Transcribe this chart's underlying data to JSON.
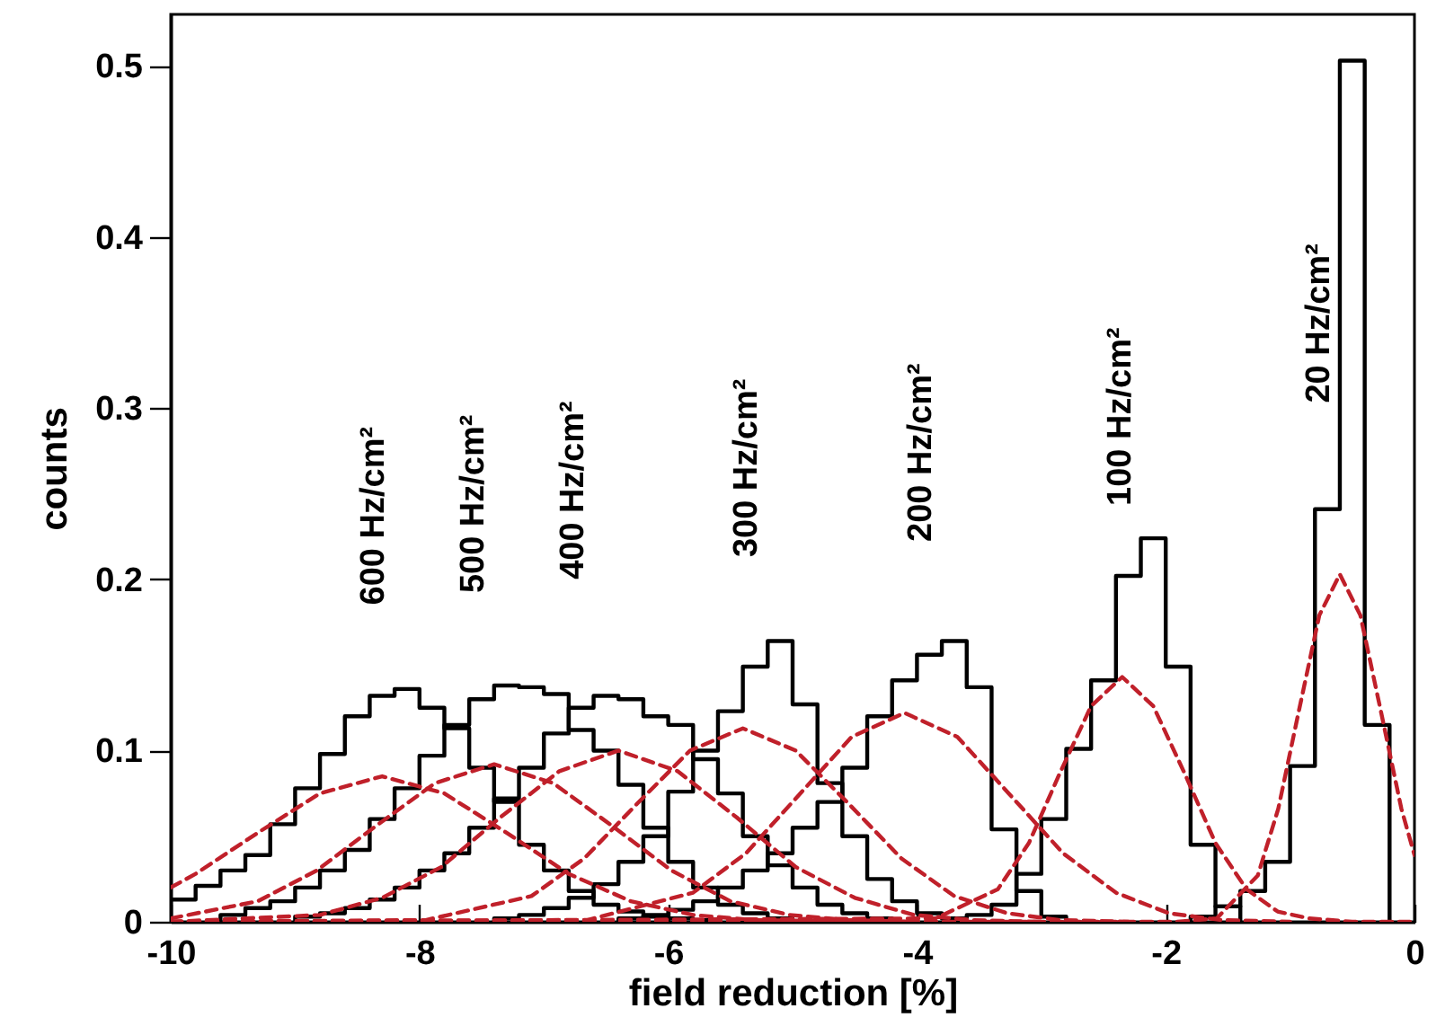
{
  "chart_data": {
    "type": "histogram",
    "xlabel": "field  reduction  [%]",
    "ylabel": "counts",
    "xlim": [
      -10,
      0
    ],
    "xticks": [
      -10,
      -8,
      -6,
      -4,
      -2,
      0
    ],
    "ylim": [
      0,
      0.53
    ],
    "yticks": [
      0,
      0.1,
      0.2,
      0.3,
      0.4,
      0.5
    ],
    "series": [
      {
        "color": "#000000",
        "bins": [
          -10,
          -9.8,
          -9.6,
          -9.4,
          -9.2,
          -9,
          -8.8,
          -8.6,
          -8.4,
          -8.2,
          -8,
          -7.8,
          -7.6,
          -7.4,
          -7.2,
          -7,
          -6.8,
          -6.6,
          -6.4,
          -6.2,
          -6,
          -5.8,
          -5.6
        ],
        "values": [
          0.013,
          0.021,
          0.03,
          0.039,
          0.057,
          0.078,
          0.098,
          0.12,
          0.132,
          0.136,
          0.125,
          0.113,
          0.09,
          0.07,
          0.045,
          0.03,
          0.018,
          0.01,
          0.006,
          0.003,
          0.002,
          0.001
        ]
      },
      {
        "color": "#000000",
        "bins": [
          -9.6,
          -9.4,
          -9.2,
          -9,
          -8.8,
          -8.6,
          -8.4,
          -8.2,
          -8,
          -7.8,
          -7.6,
          -7.4,
          -7.2,
          -7,
          -6.8,
          -6.6,
          -6.4,
          -6.2,
          -6,
          -5.8,
          -5.6,
          -5.4,
          -5.2,
          -5
        ],
        "values": [
          0.004,
          0.008,
          0.012,
          0.02,
          0.03,
          0.042,
          0.06,
          0.078,
          0.097,
          0.115,
          0.13,
          0.138,
          0.137,
          0.133,
          0.112,
          0.1,
          0.08,
          0.055,
          0.035,
          0.02,
          0.01,
          0.005,
          0.002
        ]
      },
      {
        "color": "#000000",
        "bins": [
          -9,
          -8.8,
          -8.6,
          -8.4,
          -8.2,
          -8,
          -7.8,
          -7.6,
          -7.4,
          -7.2,
          -7,
          -6.8,
          -6.6,
          -6.4,
          -6.2,
          -6,
          -5.8,
          -5.6,
          -5.4,
          -5.2,
          -5,
          -4.8,
          -4.6,
          -4.4,
          -4.2
        ],
        "values": [
          0.003,
          0.005,
          0.008,
          0.013,
          0.02,
          0.03,
          0.04,
          0.055,
          0.072,
          0.09,
          0.11,
          0.125,
          0.132,
          0.13,
          0.12,
          0.115,
          0.095,
          0.075,
          0.05,
          0.033,
          0.02,
          0.01,
          0.005,
          0.002
        ]
      },
      {
        "color": "#000000",
        "bins": [
          -7.4,
          -7.2,
          -7,
          -6.8,
          -6.6,
          -6.4,
          -6.2,
          -6,
          -5.8,
          -5.6,
          -5.4,
          -5.2,
          -5,
          -4.8,
          -4.6,
          -4.4,
          -4.2,
          -4,
          -3.8,
          -3.6
        ],
        "values": [
          0.002,
          0.004,
          0.008,
          0.014,
          0.022,
          0.035,
          0.05,
          0.076,
          0.1,
          0.123,
          0.149,
          0.164,
          0.127,
          0.081,
          0.05,
          0.025,
          0.012,
          0.005,
          0.002
        ]
      },
      {
        "color": "#000000",
        "bins": [
          -6.4,
          -6.2,
          -6,
          -5.8,
          -5.6,
          -5.4,
          -5.2,
          -5,
          -4.8,
          -4.6,
          -4.4,
          -4.2,
          -4,
          -3.8,
          -3.6,
          -3.4,
          -3.2,
          -3,
          -2.8
        ],
        "values": [
          0.002,
          0.004,
          0.007,
          0.012,
          0.02,
          0.03,
          0.04,
          0.055,
          0.07,
          0.09,
          0.12,
          0.141,
          0.156,
          0.164,
          0.137,
          0.054,
          0.018,
          0.003
        ]
      },
      {
        "color": "#000000",
        "bins": [
          -3.6,
          -3.4,
          -3.2,
          -3,
          -2.8,
          -2.6,
          -2.4,
          -2.2,
          -2,
          -1.8,
          -1.6,
          -1.4
        ],
        "values": [
          0.004,
          0.01,
          0.028,
          0.06,
          0.101,
          0.141,
          0.202,
          0.224,
          0.149,
          0.045,
          0.009
        ]
      },
      {
        "color": "#000000",
        "bins": [
          -1.8,
          -1.6,
          -1.4,
          -1.2,
          -1,
          -0.8,
          -0.6,
          -0.4,
          -0.2
        ],
        "values": [
          0.003,
          0.009,
          0.018,
          0.035,
          0.091,
          0.241,
          0.503,
          0.115
        ]
      },
      {
        "type": "line",
        "color": "#c0202a",
        "line_style": "dashed",
        "x": [
          -10,
          -9.8,
          -9.3,
          -8.8,
          -8.3,
          -7.8,
          -7.3,
          -6.8,
          -6.3,
          -5.8,
          -5.3,
          -4.3
        ],
        "values": [
          0.02,
          0.028,
          0.052,
          0.075,
          0.085,
          0.075,
          0.052,
          0.028,
          0.012,
          0.004,
          0.001,
          0
        ]
      },
      {
        "type": "line",
        "color": "#c0202a",
        "line_style": "dashed",
        "x": [
          -10,
          -9.3,
          -8.825,
          -8.35,
          -7.875,
          -7.4,
          -6.925,
          -6.45,
          -5.975,
          -5.5,
          -5.025,
          -4.55,
          -4
        ],
        "values": [
          0.002,
          0.012,
          0.03,
          0.056,
          0.081,
          0.092,
          0.081,
          0.056,
          0.03,
          0.012,
          0.004,
          0.001,
          0
        ]
      },
      {
        "type": "line",
        "color": "#c0202a",
        "line_style": "dashed",
        "x": [
          -10,
          -8.8,
          -8.3,
          -7.825,
          -7.35,
          -6.875,
          -6.4,
          -5.925,
          -5.45,
          -4.975,
          -4.5,
          -4.025,
          -3.55,
          -3
        ],
        "values": [
          0,
          0.004,
          0.014,
          0.032,
          0.061,
          0.088,
          0.1,
          0.088,
          0.061,
          0.032,
          0.014,
          0.004,
          0.001,
          0
        ]
      },
      {
        "type": "line",
        "color": "#c0202a",
        "line_style": "dashed",
        "x": [
          -10,
          -7.95,
          -7.1,
          -6.675,
          -6.25,
          -5.825,
          -5.4,
          -4.975,
          -4.55,
          -4.125,
          -3.7,
          -3.275,
          -2.85,
          -2.3
        ],
        "values": [
          0,
          0.001,
          0.015,
          0.037,
          0.069,
          0.1,
          0.113,
          0.1,
          0.069,
          0.037,
          0.015,
          0.005,
          0.001,
          0
        ]
      },
      {
        "type": "line",
        "color": "#c0202a",
        "line_style": "dashed",
        "x": [
          -10,
          -6.65,
          -5.8,
          -5.375,
          -4.95,
          -4.525,
          -4.1,
          -3.675,
          -3.25,
          -2.825,
          -2.4,
          -1.975,
          -1.55,
          -1
        ],
        "values": [
          0,
          0.001,
          0.017,
          0.04,
          0.074,
          0.108,
          0.122,
          0.108,
          0.074,
          0.04,
          0.017,
          0.005,
          0.001,
          0
        ]
      },
      {
        "type": "line",
        "color": "#c0202a",
        "line_style": "dashed",
        "x": [
          -10,
          -3.85,
          -3.35,
          -3.1,
          -2.85,
          -2.6,
          -2.35,
          -2.1,
          -1.85,
          -1.6,
          -1.35,
          -1.1,
          -0.85,
          -0.5,
          0
        ],
        "values": [
          0,
          0.002,
          0.019,
          0.046,
          0.087,
          0.126,
          0.143,
          0.126,
          0.087,
          0.046,
          0.019,
          0.006,
          0.002,
          0,
          0
        ]
      },
      {
        "type": "line",
        "color": "#c0202a",
        "line_style": "dashed",
        "x": [
          -10,
          -1.92,
          -1.59,
          -1.26,
          -1.095,
          -0.93,
          -0.765,
          -0.6,
          -0.435,
          -0.27,
          -0.105,
          0
        ],
        "values": [
          0,
          0,
          0.002,
          0.027,
          0.066,
          0.123,
          0.179,
          0.203,
          0.179,
          0.123,
          0.066,
          0.039
        ]
      }
    ],
    "annotations": [
      "600  Hz/cm²",
      "500  Hz/cm²",
      "400  Hz/cm²",
      "300  Hz/cm²",
      "200  Hz/cm²",
      "100  Hz/cm²",
      "20  Hz/cm²"
    ]
  }
}
